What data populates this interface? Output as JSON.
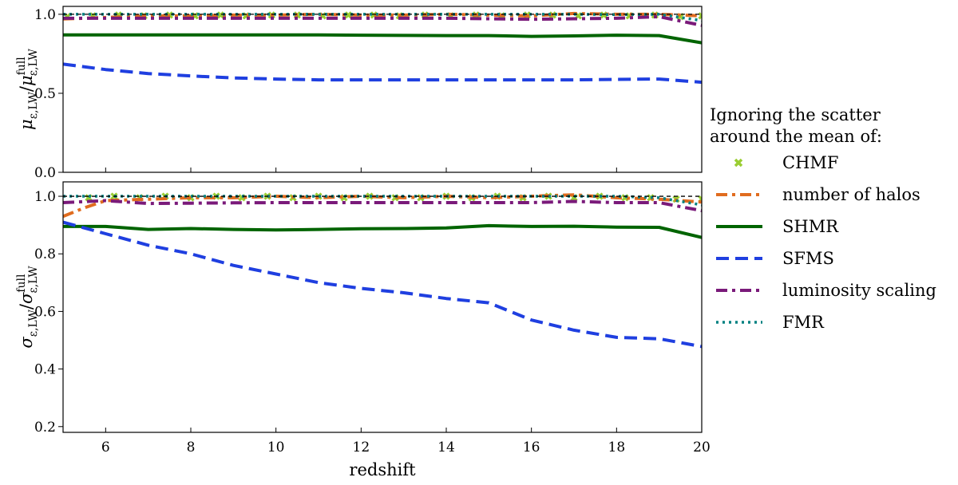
{
  "chart_data": [
    {
      "type": "line",
      "ylabel": "μ_ε,LW / μ^full_ε,LW",
      "xlabel": "",
      "xlim": [
        5,
        20
      ],
      "ylim": [
        0.0,
        1.05
      ],
      "x_ticks": [
        6,
        8,
        10,
        12,
        14,
        16,
        18,
        20
      ],
      "y_ticks": [
        0.0,
        0.5,
        1.0
      ],
      "x_tick_labels_shown": false,
      "reference_line": {
        "y": 1.0,
        "style": "dashed",
        "color": "#000000"
      },
      "series": [
        {
          "name": "CHMF",
          "style": "markers",
          "color": "#9acd32",
          "x": [
            5.1,
            5.7,
            6.3,
            6.9,
            7.5,
            8.1,
            8.7,
            9.3,
            9.9,
            10.5,
            11.1,
            11.7,
            12.3,
            12.9,
            13.5,
            14.1,
            14.7,
            15.3,
            15.9,
            16.5,
            17.1,
            17.7,
            18.3,
            18.9,
            19.5,
            20.0
          ],
          "y": [
            0.985,
            0.99,
            0.995,
            0.99,
            0.995,
            0.99,
            0.995,
            0.99,
            0.995,
            0.995,
            0.99,
            0.995,
            0.995,
            0.99,
            0.995,
            0.99,
            0.995,
            0.99,
            0.995,
            0.995,
            0.99,
            0.995,
            0.99,
            0.995,
            0.985,
            0.99
          ]
        },
        {
          "name": "number of halos",
          "style": "dashdot",
          "color": "#e06c1f",
          "x": [
            5,
            6,
            7,
            8,
            9,
            10,
            11,
            12,
            13,
            14,
            15,
            16,
            17,
            18,
            19,
            20
          ],
          "y": [
            0.97,
            0.98,
            0.99,
            0.99,
            0.995,
            0.995,
            1.0,
            0.995,
            0.995,
            1.0,
            0.995,
            0.99,
            1.005,
            1.0,
            1.0,
            0.99
          ]
        },
        {
          "name": "SHMR",
          "style": "solid",
          "color": "#006400",
          "x": [
            5,
            6,
            7,
            8,
            9,
            10,
            11,
            12,
            13,
            14,
            15,
            16,
            17,
            18,
            19,
            20
          ],
          "y": [
            0.87,
            0.87,
            0.87,
            0.87,
            0.87,
            0.87,
            0.87,
            0.868,
            0.866,
            0.865,
            0.865,
            0.86,
            0.863,
            0.868,
            0.865,
            0.82
          ]
        },
        {
          "name": "SFMS",
          "style": "dashed",
          "color": "#1f3fe0",
          "x": [
            5,
            6,
            7,
            8,
            9,
            10,
            11,
            12,
            13,
            14,
            15,
            16,
            17,
            18,
            19,
            20
          ],
          "y": [
            0.685,
            0.65,
            0.625,
            0.61,
            0.597,
            0.59,
            0.585,
            0.585,
            0.585,
            0.585,
            0.585,
            0.585,
            0.585,
            0.588,
            0.59,
            0.57
          ]
        },
        {
          "name": "luminosity scaling",
          "style": "dashdot",
          "color": "#7a1a7a",
          "x": [
            5,
            6,
            7,
            8,
            9,
            10,
            11,
            12,
            13,
            14,
            15,
            16,
            17,
            18,
            19,
            20
          ],
          "y": [
            0.975,
            0.975,
            0.975,
            0.975,
            0.975,
            0.975,
            0.975,
            0.975,
            0.975,
            0.975,
            0.972,
            0.968,
            0.972,
            0.975,
            0.985,
            0.93
          ]
        },
        {
          "name": "FMR",
          "style": "dotted",
          "color": "#008080",
          "x": [
            5,
            6,
            7,
            8,
            9,
            10,
            11,
            12,
            13,
            14,
            15,
            16,
            17,
            18,
            19,
            20
          ],
          "y": [
            1.0,
            1.0,
            1.0,
            1.0,
            1.0,
            1.0,
            1.0,
            1.0,
            1.0,
            1.0,
            1.0,
            1.0,
            1.0,
            0.998,
            1.0,
            0.96
          ]
        }
      ]
    },
    {
      "type": "line",
      "ylabel": "σ_ε,LW / σ^full_ε,LW",
      "xlabel": "redshift",
      "xlim": [
        5,
        20
      ],
      "ylim": [
        0.18,
        1.05
      ],
      "x_ticks": [
        6,
        8,
        10,
        12,
        14,
        16,
        18,
        20
      ],
      "y_ticks": [
        0.2,
        0.4,
        0.6,
        0.8,
        1.0
      ],
      "x_tick_labels_shown": true,
      "reference_line": {
        "y": 1.0,
        "style": "dashed",
        "color": "#000000"
      },
      "series": [
        {
          "name": "CHMF",
          "style": "markers",
          "color": "#9acd32",
          "x": [
            5.6,
            6.2,
            6.8,
            7.4,
            8.0,
            8.6,
            9.2,
            9.8,
            10.4,
            11.0,
            11.6,
            12.2,
            12.8,
            13.4,
            14.0,
            14.6,
            15.2,
            15.8,
            16.4,
            17.0,
            17.6,
            18.2,
            18.8,
            19.4,
            20.0
          ],
          "y": [
            0.995,
            1.0,
            0.995,
            1.0,
            0.995,
            1.0,
            0.995,
            1.0,
            0.995,
            1.0,
            0.995,
            1.0,
            0.995,
            0.995,
            1.0,
            0.995,
            1.0,
            0.995,
            1.0,
            0.995,
            1.0,
            0.995,
            0.995,
            0.99,
            0.99
          ]
        },
        {
          "name": "number of halos",
          "style": "dashdot",
          "color": "#e06c1f",
          "x": [
            5,
            5.5,
            6,
            7,
            8,
            9,
            10,
            11,
            12,
            13,
            14,
            15,
            16,
            17,
            18,
            19,
            20
          ],
          "y": [
            0.93,
            0.96,
            0.985,
            0.99,
            0.995,
            0.995,
            1.0,
            0.995,
            1.0,
            0.995,
            1.0,
            0.995,
            1.0,
            1.005,
            0.995,
            0.99,
            0.98
          ]
        },
        {
          "name": "SHMR",
          "style": "solid",
          "color": "#006400",
          "x": [
            5,
            6,
            7,
            8,
            9,
            10,
            11,
            12,
            13,
            14,
            15,
            16,
            17,
            18,
            19,
            20
          ],
          "y": [
            0.895,
            0.895,
            0.885,
            0.888,
            0.885,
            0.883,
            0.885,
            0.887,
            0.888,
            0.89,
            0.898,
            0.895,
            0.896,
            0.893,
            0.892,
            0.857
          ]
        },
        {
          "name": "SFMS",
          "style": "dashed",
          "color": "#1f3fe0",
          "x": [
            5,
            6,
            7,
            8,
            9,
            10,
            11,
            12,
            13,
            14,
            15,
            16,
            17,
            18,
            19,
            20
          ],
          "y": [
            0.91,
            0.87,
            0.83,
            0.8,
            0.76,
            0.73,
            0.7,
            0.68,
            0.665,
            0.645,
            0.63,
            0.57,
            0.535,
            0.51,
            0.505,
            0.478
          ]
        },
        {
          "name": "luminosity scaling",
          "style": "dashdot",
          "color": "#7a1a7a",
          "x": [
            5,
            6,
            7,
            8,
            9,
            10,
            11,
            12,
            13,
            14,
            15,
            16,
            17,
            18,
            19,
            20
          ],
          "y": [
            0.978,
            0.985,
            0.975,
            0.976,
            0.977,
            0.978,
            0.978,
            0.978,
            0.978,
            0.978,
            0.978,
            0.978,
            0.982,
            0.978,
            0.978,
            0.95
          ]
        },
        {
          "name": "FMR",
          "style": "dotted",
          "color": "#008080",
          "x": [
            5,
            6,
            7,
            8,
            9,
            10,
            11,
            12,
            13,
            14,
            15,
            16,
            17,
            18,
            19,
            20
          ],
          "y": [
            1.0,
            1.0,
            1.0,
            1.0,
            1.0,
            1.0,
            1.0,
            1.0,
            1.0,
            1.0,
            1.0,
            1.0,
            1.0,
            1.0,
            0.995,
            0.97
          ]
        }
      ]
    }
  ],
  "legend": {
    "placement": "right",
    "title_lines": [
      "Ignoring the scatter",
      "around the mean of:"
    ],
    "entries": [
      "CHMF",
      "number of halos",
      "SHMR",
      "SFMS",
      "luminosity scaling",
      "FMR"
    ]
  }
}
